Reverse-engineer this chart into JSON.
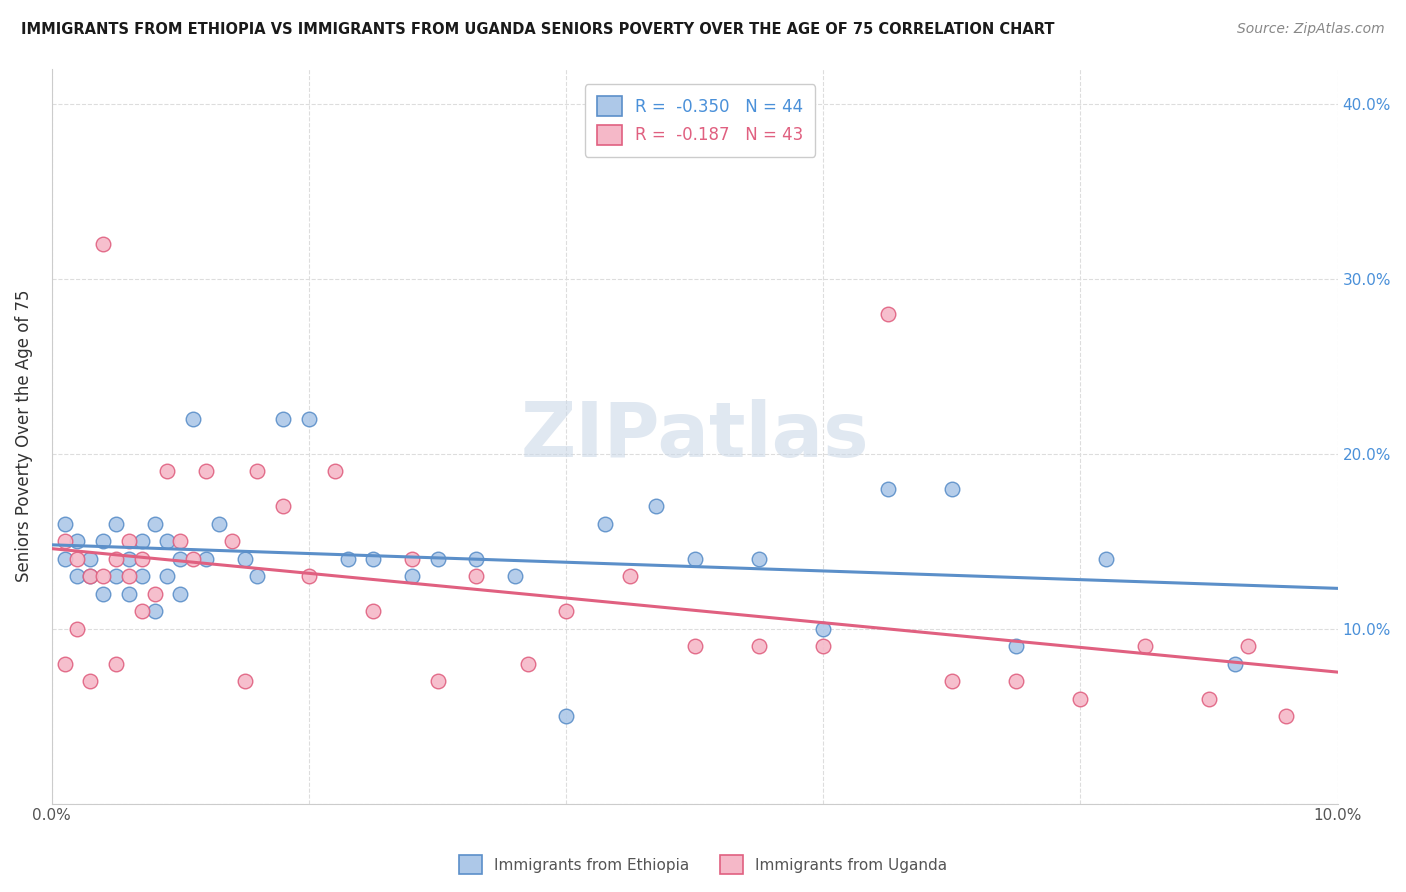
{
  "title": "IMMIGRANTS FROM ETHIOPIA VS IMMIGRANTS FROM UGANDA SENIORS POVERTY OVER THE AGE OF 75 CORRELATION CHART",
  "source": "Source: ZipAtlas.com",
  "ylabel": "Seniors Poverty Over the Age of 75",
  "xlim": [
    0.0,
    0.1
  ],
  "ylim": [
    0.0,
    0.42
  ],
  "legend_entries": [
    {
      "label": "R =  -0.350   N = 44",
      "color": "#a8c4e0"
    },
    {
      "label": "R =  -0.187   N = 43",
      "color": "#f4a0b0"
    }
  ],
  "ethiopia_color": "#adc8e8",
  "ethiopia_edge": "#5b8fc9",
  "uganda_color": "#f5b8c8",
  "uganda_edge": "#e06080",
  "watermark": "ZIPatlas",
  "background_color": "#ffffff",
  "grid_color": "#dddddd",
  "ethiopia_x": [
    0.001,
    0.001,
    0.002,
    0.002,
    0.003,
    0.003,
    0.004,
    0.004,
    0.005,
    0.005,
    0.006,
    0.006,
    0.007,
    0.007,
    0.008,
    0.008,
    0.009,
    0.009,
    0.01,
    0.01,
    0.011,
    0.012,
    0.013,
    0.015,
    0.016,
    0.018,
    0.02,
    0.023,
    0.025,
    0.028,
    0.03,
    0.033,
    0.036,
    0.04,
    0.043,
    0.047,
    0.05,
    0.055,
    0.06,
    0.065,
    0.07,
    0.075,
    0.082,
    0.092
  ],
  "ethiopia_y": [
    0.14,
    0.16,
    0.15,
    0.13,
    0.14,
    0.13,
    0.15,
    0.12,
    0.13,
    0.16,
    0.14,
    0.12,
    0.15,
    0.13,
    0.16,
    0.11,
    0.13,
    0.15,
    0.14,
    0.12,
    0.22,
    0.14,
    0.16,
    0.14,
    0.13,
    0.22,
    0.22,
    0.14,
    0.14,
    0.13,
    0.14,
    0.14,
    0.13,
    0.05,
    0.16,
    0.17,
    0.14,
    0.14,
    0.1,
    0.18,
    0.18,
    0.09,
    0.14,
    0.08
  ],
  "uganda_x": [
    0.001,
    0.001,
    0.002,
    0.002,
    0.003,
    0.003,
    0.004,
    0.004,
    0.005,
    0.005,
    0.006,
    0.006,
    0.007,
    0.007,
    0.008,
    0.009,
    0.01,
    0.011,
    0.012,
    0.014,
    0.015,
    0.016,
    0.018,
    0.02,
    0.022,
    0.025,
    0.028,
    0.03,
    0.033,
    0.037,
    0.04,
    0.045,
    0.05,
    0.055,
    0.06,
    0.065,
    0.07,
    0.075,
    0.08,
    0.085,
    0.09,
    0.093,
    0.096
  ],
  "uganda_y": [
    0.15,
    0.08,
    0.14,
    0.1,
    0.13,
    0.07,
    0.32,
    0.13,
    0.14,
    0.08,
    0.15,
    0.13,
    0.14,
    0.11,
    0.12,
    0.19,
    0.15,
    0.14,
    0.19,
    0.15,
    0.07,
    0.19,
    0.17,
    0.13,
    0.19,
    0.11,
    0.14,
    0.07,
    0.13,
    0.08,
    0.11,
    0.13,
    0.09,
    0.09,
    0.09,
    0.28,
    0.07,
    0.07,
    0.06,
    0.09,
    0.06,
    0.09,
    0.05
  ]
}
